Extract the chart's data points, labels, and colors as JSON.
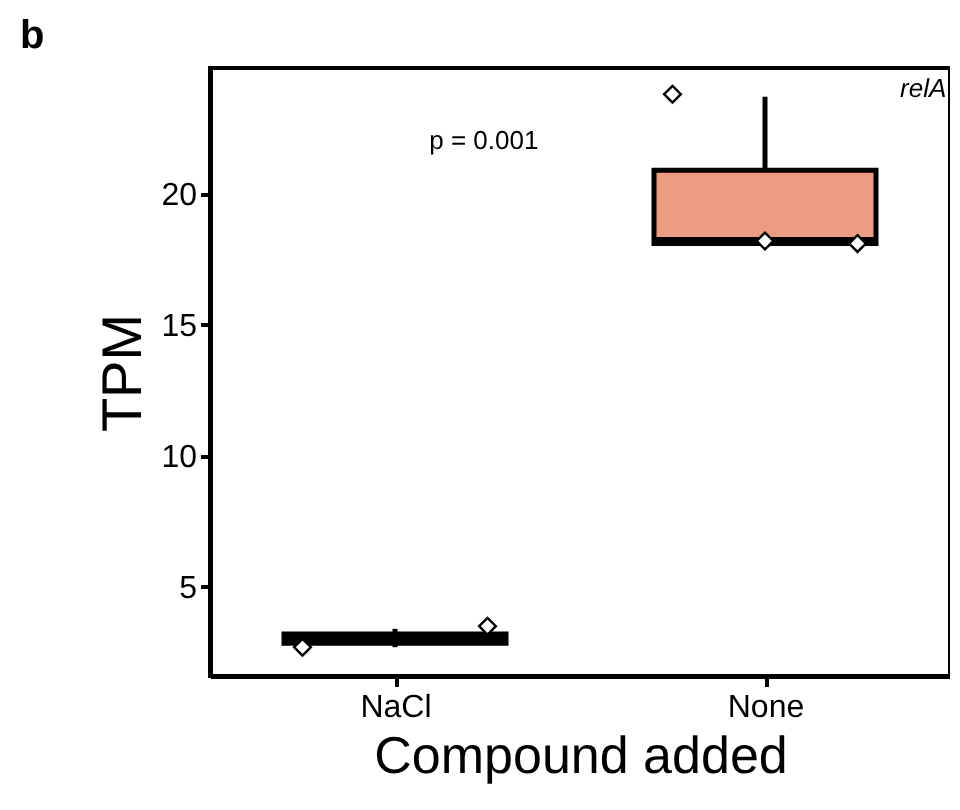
{
  "chart_data": {
    "type": "box",
    "title": "b",
    "xlabel": "Compound added",
    "ylabel": "TPM",
    "categories": [
      "NaCl",
      "None"
    ],
    "boxes": [
      {
        "low": 2.7,
        "q1": 2.85,
        "median": 3.0,
        "q3": 3.2,
        "high": 3.4
      },
      {
        "low": 18.1,
        "q1": 18.1,
        "median": 18.2,
        "q3": 20.9,
        "high": 23.7
      }
    ],
    "color": "#ec9c80",
    "ylim": [
      1.6,
      24.8
    ],
    "yticks": [
      5,
      10,
      15,
      20
    ],
    "grid": false,
    "marker": "diamond",
    "series": [
      {
        "type": "scatter",
        "color": "#ffffff",
        "x": [
          "NaCl",
          "NaCl",
          "NaCl",
          "None",
          "None",
          "None"
        ],
        "values": [
          2.7,
          null,
          3.5,
          23.8,
          18.2,
          18.1
        ]
      }
    ],
    "annotations": [
      "p = 0.001",
      "relA"
    ]
  }
}
